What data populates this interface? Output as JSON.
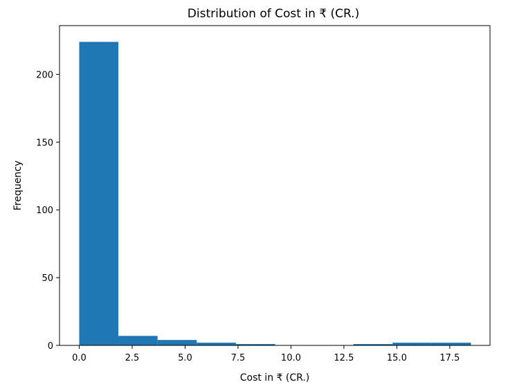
{
  "chart_data": {
    "type": "bar",
    "title": "Distribution of Cost in ₹ (CR.)",
    "xlabel": "Cost in ₹ (CR.)",
    "ylabel": "Frequency",
    "xlim": [
      -0.93,
      19.4
    ],
    "ylim": [
      0,
      236
    ],
    "grid": false,
    "bar_color": "#1f77b4",
    "bins": [
      {
        "x0": 0.0,
        "x1": 1.85,
        "count": 224
      },
      {
        "x0": 1.85,
        "x1": 3.7,
        "count": 7
      },
      {
        "x0": 3.7,
        "x1": 5.55,
        "count": 4
      },
      {
        "x0": 5.55,
        "x1": 7.4,
        "count": 2
      },
      {
        "x0": 7.4,
        "x1": 9.25,
        "count": 1
      },
      {
        "x0": 9.25,
        "x1": 11.1,
        "count": 0
      },
      {
        "x0": 11.1,
        "x1": 12.95,
        "count": 0
      },
      {
        "x0": 12.95,
        "x1": 14.8,
        "count": 1
      },
      {
        "x0": 14.8,
        "x1": 16.65,
        "count": 2
      },
      {
        "x0": 16.65,
        "x1": 18.5,
        "count": 2
      }
    ],
    "xticks": [
      {
        "value": 0.0,
        "label": "0.0"
      },
      {
        "value": 2.5,
        "label": "2.5"
      },
      {
        "value": 5.0,
        "label": "5.0"
      },
      {
        "value": 7.5,
        "label": "7.5"
      },
      {
        "value": 10.0,
        "label": "10.0"
      },
      {
        "value": 12.5,
        "label": "12.5"
      },
      {
        "value": 15.0,
        "label": "15.0"
      },
      {
        "value": 17.5,
        "label": "17.5"
      }
    ],
    "yticks": [
      {
        "value": 0,
        "label": "0"
      },
      {
        "value": 50,
        "label": "50"
      },
      {
        "value": 100,
        "label": "100"
      },
      {
        "value": 150,
        "label": "150"
      },
      {
        "value": 200,
        "label": "200"
      }
    ]
  }
}
